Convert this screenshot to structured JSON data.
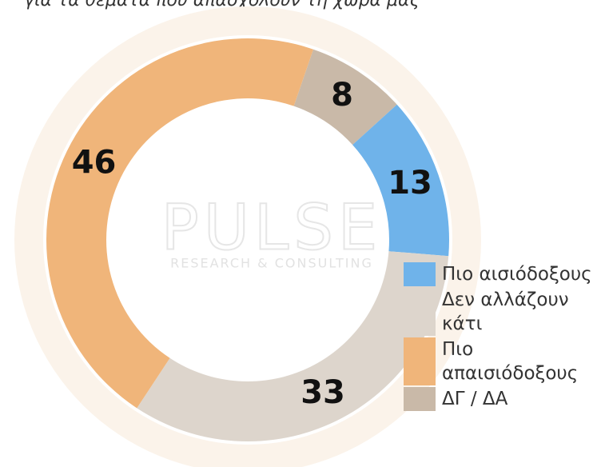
{
  "chart_data": {
    "type": "donut",
    "title": "για τα θέματα που απασχολούν τη χώρα μας",
    "watermark": "PULSE",
    "watermark_sub": "RESEARCH & CONSULTING",
    "categories": [
      "ΔΓ / ΔΑ",
      "Πιο αισιόδοξους",
      "Δεν αλλάζουν κάτι",
      "Πιο απαισιόδοξους"
    ],
    "values": [
      8,
      13,
      33,
      46
    ],
    "colors": [
      "#c9b9a8",
      "#6fb3ea",
      "#ddd5cc",
      "#f0b57a"
    ],
    "legend": [
      "Πιο αισιόδοξους",
      "Δεν αλλάζουν κάτι",
      "Πιο απαισιόδοξους",
      "ΔΓ / ΔΑ"
    ],
    "legend_colors": [
      "#6fb3ea",
      "#ddd5cc",
      "#f0b57a",
      "#c9b9a8"
    ]
  }
}
